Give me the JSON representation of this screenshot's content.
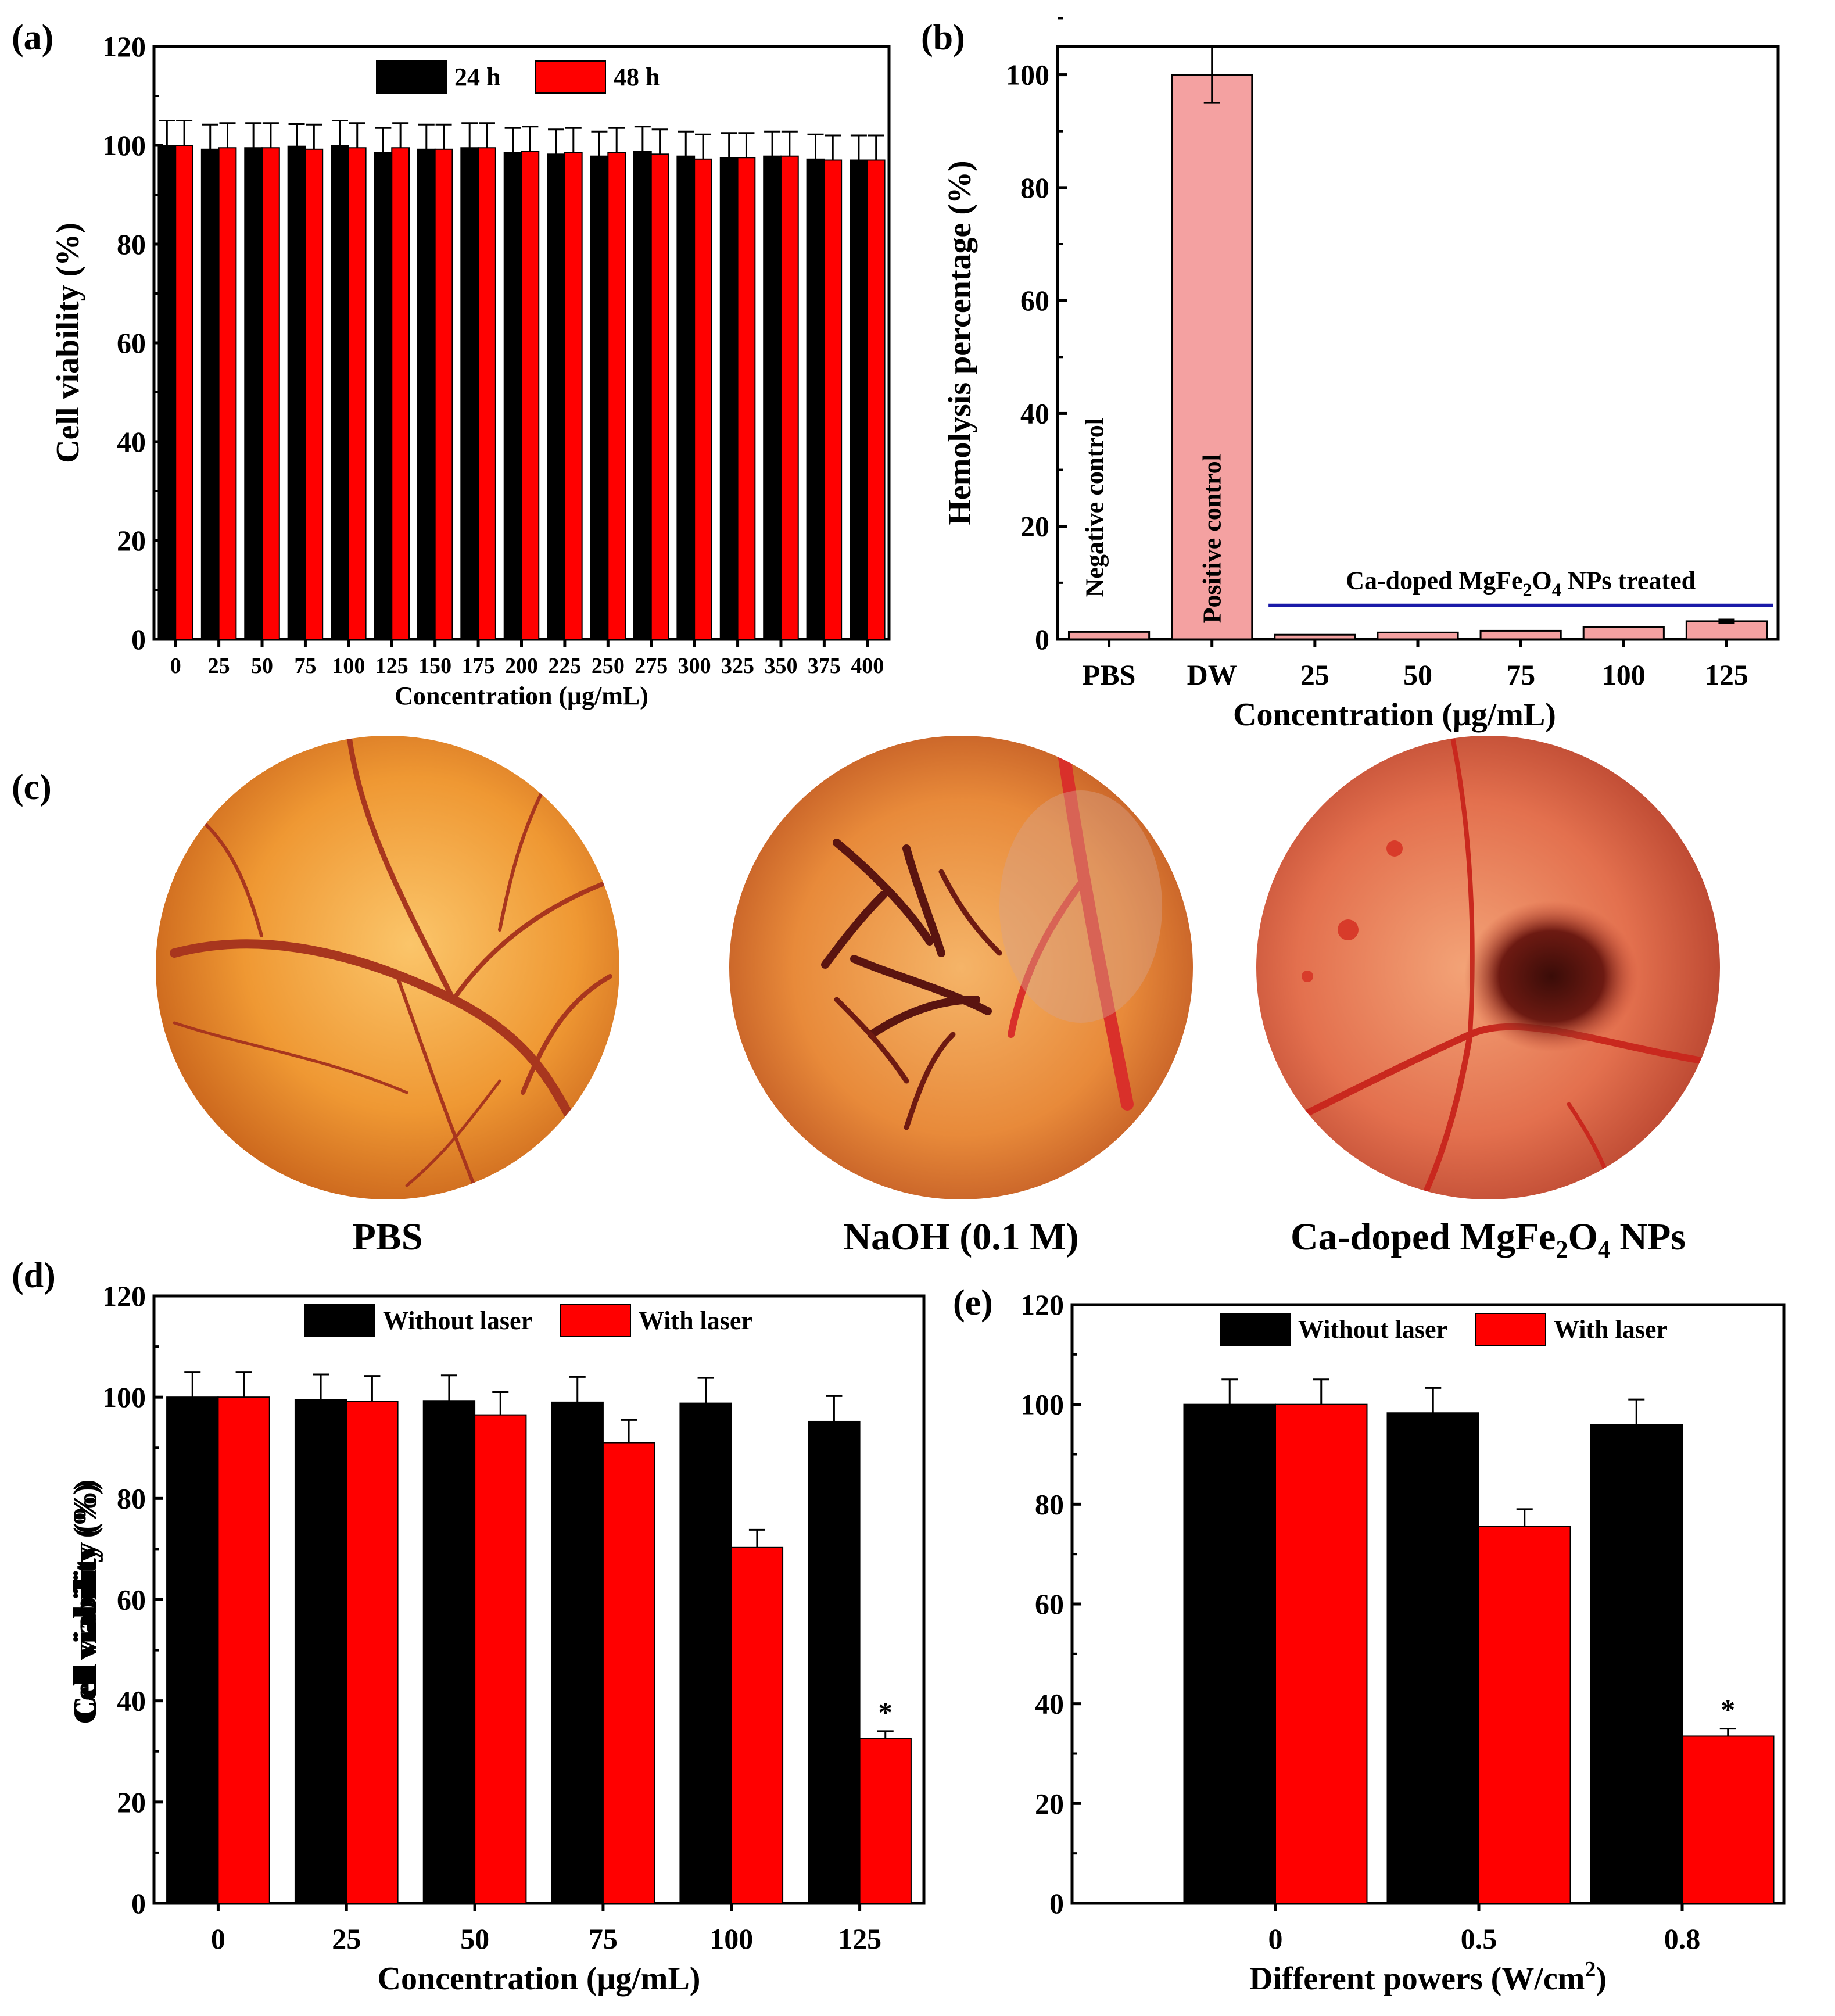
{
  "figure": {
    "panels": {
      "a": "(a)",
      "b": "(b)",
      "c": "(c)",
      "d": "(d)",
      "e": "(e)"
    },
    "captions": {
      "pbs": "PBS",
      "naoh": "NaOH (0.1 M)",
      "ca_prefix": "Ca-doped MgFe",
      "ca_sub1": "2",
      "ca_mid": "O",
      "ca_sub2": "4",
      "ca_suffix": " NPs"
    },
    "colors": {
      "black": "#000000",
      "red": "#ff0000",
      "pink": "#f4a1a1",
      "blue": "#1a1aa8",
      "egg_base": "#e98a2c",
      "egg_light": "#f8bc5c",
      "vessel": "#b3271f"
    }
  },
  "chart_data": [
    {
      "id": "a",
      "type": "bar",
      "title": "",
      "xlabel": "Concentration (μg/mL)",
      "ylabel": "Cell viability (%)",
      "ylim": [
        0,
        120
      ],
      "yticks": [
        0,
        20,
        40,
        60,
        80,
        100,
        120
      ],
      "categories": [
        "0",
        "25",
        "50",
        "75",
        "100",
        "125",
        "150",
        "175",
        "200",
        "225",
        "250",
        "275",
        "300",
        "325",
        "350",
        "375",
        "400"
      ],
      "series": [
        {
          "name": "24 h",
          "color": "#000000",
          "values": [
            100,
            99.2,
            99.5,
            99.8,
            100,
            98.5,
            99.2,
            99.5,
            98.5,
            98.2,
            97.8,
            98.8,
            97.8,
            97.5,
            97.8,
            97.2,
            97
          ],
          "errors": [
            5,
            5,
            5,
            4.5,
            5,
            5,
            5,
            5,
            5,
            5,
            5,
            5,
            5,
            5,
            5,
            5,
            5
          ]
        },
        {
          "name": "48 h",
          "color": "#ff0000",
          "values": [
            100,
            99.5,
            99.5,
            99.2,
            99.5,
            99.5,
            99.2,
            99.5,
            98.8,
            98.5,
            98.5,
            98.2,
            97.2,
            97.5,
            97.8,
            97,
            97
          ],
          "errors": [
            5,
            5,
            5,
            5,
            5,
            5,
            5,
            5,
            5,
            5,
            5,
            5,
            5,
            5,
            5,
            5,
            5
          ]
        }
      ],
      "legend": "top-center"
    },
    {
      "id": "b",
      "type": "bar",
      "title": "",
      "xlabel": "Concentration (μg/mL)",
      "ylabel": "Hemolysis percentage (%)",
      "ylim": [
        0,
        105
      ],
      "yticks": [
        0,
        20,
        40,
        60,
        80,
        100
      ],
      "categories": [
        "PBS",
        "DW",
        "25",
        "50",
        "75",
        "100",
        "125"
      ],
      "values": [
        1.3,
        100,
        0.8,
        1.2,
        1.5,
        2.2,
        3.2
      ],
      "errors": [
        0,
        5,
        0,
        0,
        0,
        0,
        0.3
      ],
      "color": "#f4a1a1",
      "annotations": {
        "negative": "Negative control",
        "positive": "Positive control",
        "treated_prefix": "Ca-doped MgFe",
        "treated_sub1": "2",
        "treated_mid": "O",
        "treated_sub2": "4",
        "treated_suffix": " NPs treated",
        "treated_line_y": 6
      }
    },
    {
      "id": "d",
      "type": "bar",
      "title": "",
      "xlabel": "Concentration (μg/mL)",
      "ylabel": "Cell viability (%)",
      "ylim": [
        0,
        120
      ],
      "yticks": [
        0,
        20,
        40,
        60,
        80,
        100,
        120
      ],
      "categories": [
        "0",
        "25",
        "50",
        "75",
        "100",
        "125"
      ],
      "series": [
        {
          "name": "Without laser",
          "color": "#000000",
          "values": [
            100,
            99.5,
            99.3,
            99,
            98.8,
            95.2
          ],
          "errors": [
            5,
            5,
            5,
            5,
            5,
            5
          ]
        },
        {
          "name": "With laser",
          "color": "#ff0000",
          "values": [
            100,
            99.2,
            96.5,
            91,
            70.3,
            32.5
          ],
          "errors": [
            5,
            5,
            4.5,
            4.5,
            3.5,
            1.5
          ]
        }
      ],
      "significance": {
        "series": 1,
        "index": 5,
        "mark": "*"
      },
      "legend": "top-center"
    },
    {
      "id": "e",
      "type": "bar",
      "title": "",
      "xlabel_prefix": "Different powers (W/cm",
      "xlabel_sup": "2",
      "xlabel_suffix": ")",
      "ylabel": "Cell viability (%)",
      "ylim": [
        0,
        120
      ],
      "yticks": [
        0,
        20,
        40,
        60,
        80,
        100,
        120
      ],
      "categories": [
        "0",
        "0.5",
        "0.8"
      ],
      "series": [
        {
          "name": "Without laser",
          "color": "#000000",
          "values": [
            100,
            98.3,
            96
          ],
          "errors": [
            5,
            5,
            5
          ]
        },
        {
          "name": "With laser",
          "color": "#ff0000",
          "values": [
            100,
            75.5,
            33.5
          ],
          "errors": [
            5,
            3.5,
            1.5
          ]
        }
      ],
      "significance": {
        "series": 1,
        "index": 2,
        "mark": "*"
      },
      "legend": "top-center"
    }
  ]
}
